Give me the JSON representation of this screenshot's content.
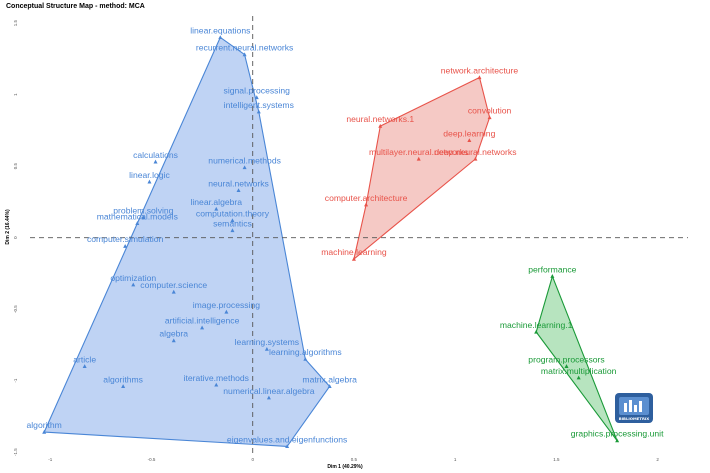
{
  "chart_data": {
    "type": "scatter",
    "title": "Conceptual Structure Map - method: MCA",
    "xlabel": "Dim 1 (40.29%)",
    "ylabel": "Dim 2 (16.44%)",
    "xlim": [
      -1.1,
      2.15
    ],
    "ylim": [
      -1.52,
      1.55
    ],
    "x_ticks": [
      "-1",
      "-0.5",
      "0",
      "0.5",
      "1",
      "1.5",
      "2"
    ],
    "x_tick_values": [
      -1,
      -0.5,
      0,
      0.5,
      1,
      1.5,
      2
    ],
    "y_ticks": [
      "-1.5",
      "-1",
      "-0.5",
      "0",
      "0.5",
      "1",
      "1.5"
    ],
    "y_tick_values": [
      -1.5,
      -1,
      -0.5,
      0,
      0.5,
      1,
      1.5
    ],
    "grid": false,
    "reference_lines": {
      "x": 0,
      "y": 0
    },
    "series": [
      {
        "color": "#4a86d6",
        "fill": "#a9c4f0",
        "points": [
          {
            "label": "linear.equations",
            "x": -0.16,
            "y": 1.4
          },
          {
            "label": "recurrent.neural.networks",
            "x": -0.04,
            "y": 1.28
          },
          {
            "label": "signal.processing",
            "x": 0.02,
            "y": 0.98
          },
          {
            "label": "intelligent.systems",
            "x": 0.03,
            "y": 0.88
          },
          {
            "label": "numerical.methods",
            "x": -0.04,
            "y": 0.49
          },
          {
            "label": "neural.networks",
            "x": -0.07,
            "y": 0.33
          },
          {
            "label": "linear.algebra",
            "x": -0.18,
            "y": 0.2
          },
          {
            "label": "computation.theory",
            "x": -0.1,
            "y": 0.12
          },
          {
            "label": "semantics",
            "x": -0.1,
            "y": 0.05
          },
          {
            "label": "calculations",
            "x": -0.48,
            "y": 0.53
          },
          {
            "label": "linear.logic",
            "x": -0.51,
            "y": 0.39
          },
          {
            "label": "problem.solving",
            "x": -0.54,
            "y": 0.14
          },
          {
            "label": "mathematical.models",
            "x": -0.57,
            "y": 0.1
          },
          {
            "label": "computer.simulation",
            "x": -0.63,
            "y": -0.06
          },
          {
            "label": "optimization",
            "x": -0.59,
            "y": -0.33
          },
          {
            "label": "computer.science",
            "x": -0.39,
            "y": -0.38
          },
          {
            "label": "image.processing",
            "x": -0.13,
            "y": -0.52
          },
          {
            "label": "artificial.intelligence",
            "x": -0.25,
            "y": -0.63
          },
          {
            "label": "learning.systems",
            "x": 0.07,
            "y": -0.78
          },
          {
            "label": "algebra",
            "x": -0.39,
            "y": -0.72
          },
          {
            "label": "learning.algorithms",
            "x": 0.26,
            "y": -0.85
          },
          {
            "label": "article",
            "x": -0.83,
            "y": -0.9
          },
          {
            "label": "iterative.methods",
            "x": -0.18,
            "y": -1.03
          },
          {
            "label": "algorithms",
            "x": -0.64,
            "y": -1.04
          },
          {
            "label": "matrix.algebra",
            "x": 0.38,
            "y": -1.04
          },
          {
            "label": "numerical.linear.algebra",
            "x": 0.08,
            "y": -1.12
          },
          {
            "label": "eigenvalues.and.eigenfunctions",
            "x": 0.17,
            "y": -1.46
          },
          {
            "label": "algorithm",
            "x": -1.03,
            "y": -1.36
          }
        ]
      },
      {
        "color": "#e8534a",
        "fill": "#f2b7b1",
        "points": [
          {
            "label": "network.architecture",
            "x": 1.12,
            "y": 1.12
          },
          {
            "label": "convolution",
            "x": 1.17,
            "y": 0.84
          },
          {
            "label": "neural.networks.1",
            "x": 0.63,
            "y": 0.78
          },
          {
            "label": "deep.learning",
            "x": 1.07,
            "y": 0.68
          },
          {
            "label": "multilayer.neural.networks",
            "x": 0.82,
            "y": 0.55
          },
          {
            "label": "deep.neural.networks",
            "x": 1.1,
            "y": 0.55
          },
          {
            "label": "computer.architecture",
            "x": 0.56,
            "y": 0.23
          },
          {
            "label": "machine.learning",
            "x": 0.5,
            "y": -0.15
          }
        ]
      },
      {
        "color": "#1a9a38",
        "fill": "#9fdba9",
        "points": [
          {
            "label": "performance",
            "x": 1.48,
            "y": -0.27
          },
          {
            "label": "machine.learning.1",
            "x": 1.4,
            "y": -0.66
          },
          {
            "label": "program.processors",
            "x": 1.55,
            "y": -0.9
          },
          {
            "label": "matrix.multiplication",
            "x": 1.61,
            "y": -0.98
          },
          {
            "label": "graphics.processing.unit",
            "x": 1.8,
            "y": -1.42
          }
        ]
      }
    ],
    "hulls": [
      [
        "linear.equations",
        "recurrent.neural.networks",
        "intelligent.systems",
        "learning.algorithms",
        "matrix.algebra",
        "eigenvalues.and.eigenfunctions",
        "algorithm"
      ],
      [
        "network.architecture",
        "convolution",
        "deep.neural.networks",
        "machine.learning",
        "computer.architecture",
        "neural.networks.1"
      ],
      [
        "performance",
        "graphics.processing.unit",
        "machine.learning.1"
      ]
    ],
    "watermark": "BIBLIOMETRIX"
  }
}
